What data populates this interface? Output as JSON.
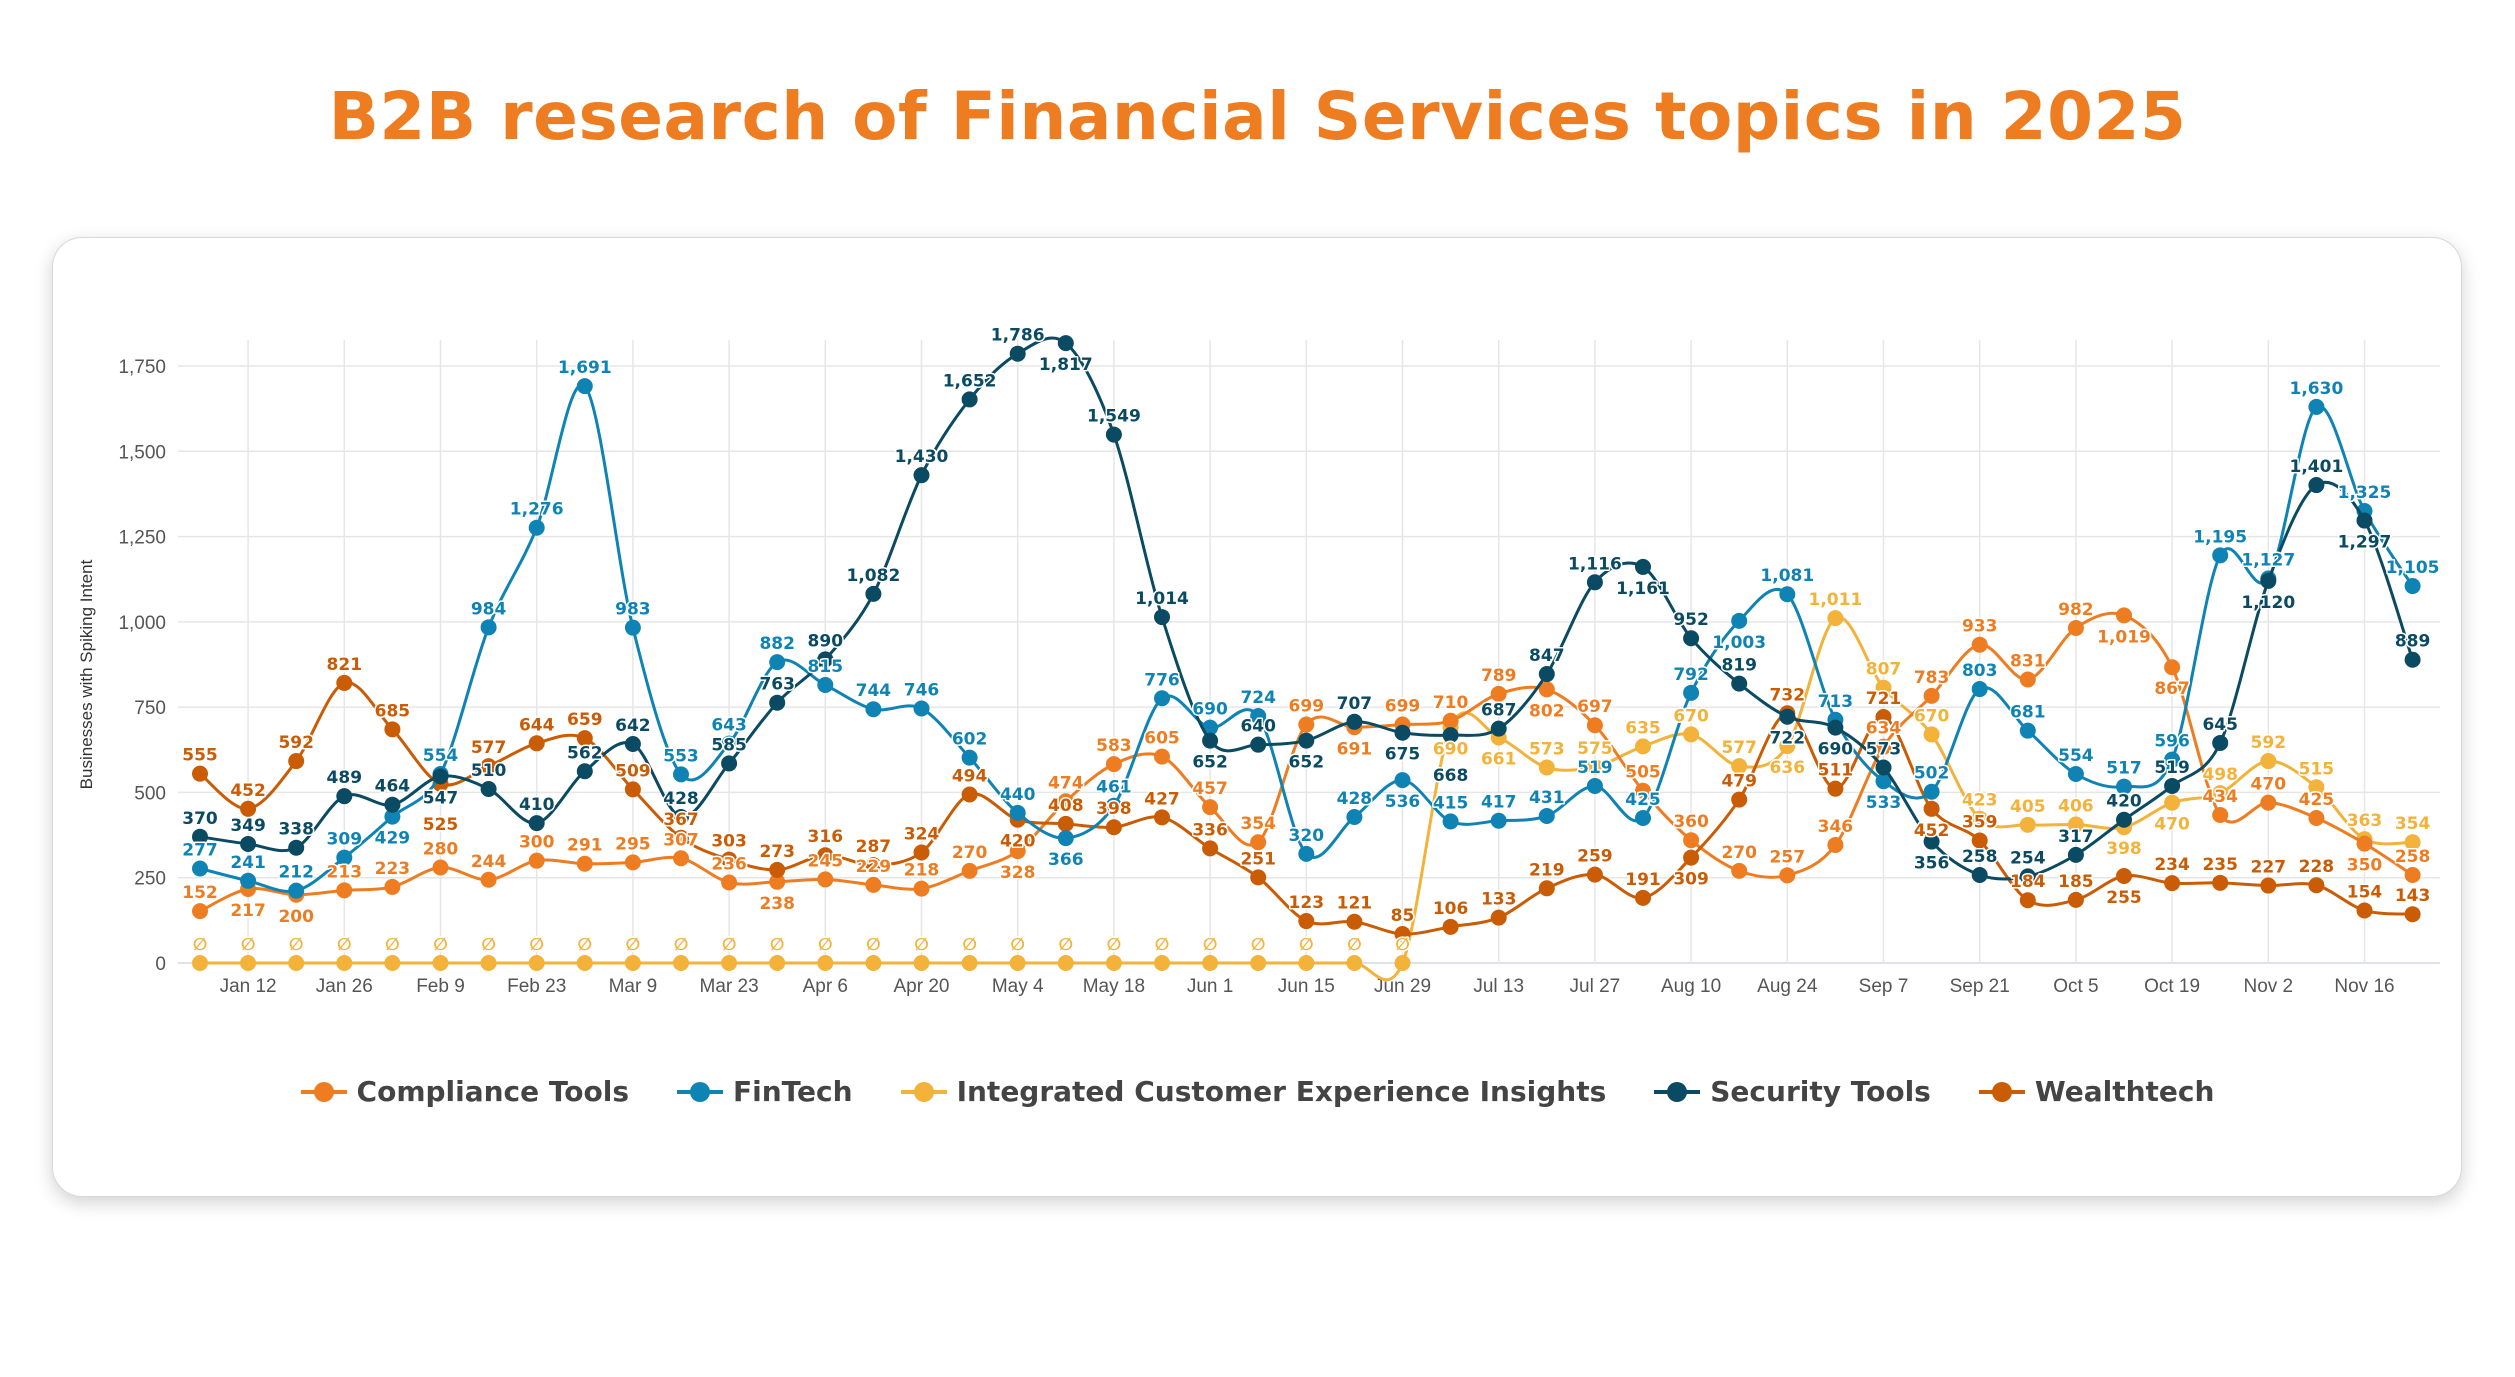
{
  "title": "B2B research of Financial Services topics in 2025",
  "chart_data": {
    "type": "line",
    "title": "B2B research of Financial Services topics in 2025",
    "xlabel": "",
    "ylabel": "Businesses with Spiking Intent",
    "ylim": [
      0,
      1750
    ],
    "yticks": [
      "0",
      "250",
      "500",
      "750",
      "1,000",
      "1,250",
      "1,500",
      "1,750"
    ],
    "ytick_values": [
      0,
      250,
      500,
      750,
      1000,
      1250,
      1500,
      1750
    ],
    "grid": true,
    "legend_position": "bottom",
    "null_marker": "∅",
    "x": [
      "Jan 5",
      "Jan 12",
      "Jan 19",
      "Jan 26",
      "Feb 2",
      "Feb 9",
      "Feb 16",
      "Feb 23",
      "Mar 2",
      "Mar 9",
      "Mar 16",
      "Mar 23",
      "Mar 30",
      "Apr 6",
      "Apr 13",
      "Apr 20",
      "Apr 27",
      "May 4",
      "May 11",
      "May 18",
      "May 25",
      "Jun 1",
      "Jun 8",
      "Jun 15",
      "Jun 22",
      "Jun 29",
      "Jul 6",
      "Jul 13",
      "Jul 20",
      "Jul 27",
      "Aug 3",
      "Aug 10",
      "Aug 17",
      "Aug 24",
      "Aug 31",
      "Sep 7",
      "Sep 14",
      "Sep 21",
      "Sep 28",
      "Oct 5",
      "Oct 12",
      "Oct 19",
      "Oct 26",
      "Nov 2",
      "Nov 9",
      "Nov 16",
      "Nov 23"
    ],
    "xticks": [
      "Jan 12",
      "Jan 26",
      "Feb 9",
      "Feb 23",
      "Mar 9",
      "Mar 23",
      "Apr 6",
      "Apr 20",
      "May 4",
      "May 18",
      "Jun 1",
      "Jun 15",
      "Jun 29",
      "Jul 13",
      "Jul 27",
      "Aug 10",
      "Aug 24",
      "Sep 7",
      "Sep 21",
      "Oct 5",
      "Oct 19",
      "Nov 2",
      "Nov 16"
    ],
    "series": [
      {
        "name": "Compliance Tools",
        "color": "#ee7d22",
        "values": [
          152,
          217,
          200,
          213,
          223,
          280,
          244,
          300,
          291,
          295,
          307,
          236,
          238,
          245,
          229,
          218,
          270,
          328,
          474,
          583,
          605,
          457,
          354,
          699,
          691,
          699,
          710,
          789,
          802,
          697,
          505,
          360,
          270,
          257,
          346,
          634,
          783,
          933,
          831,
          982,
          1019,
          867,
          434,
          470,
          425,
          350,
          258
        ]
      },
      {
        "name": "FinTech",
        "color": "#0f84b4",
        "values": [
          277,
          241,
          212,
          309,
          429,
          554,
          984,
          1276,
          1691,
          983,
          553,
          643,
          882,
          815,
          744,
          746,
          602,
          440,
          366,
          461,
          776,
          690,
          724,
          320,
          428,
          536,
          415,
          417,
          431,
          519,
          425,
          792,
          1003,
          1081,
          713,
          533,
          502,
          803,
          681,
          554,
          517,
          596,
          1195,
          1127,
          1630,
          1325,
          1105
        ]
      },
      {
        "name": "Integrated Customer Experience Insights",
        "color": "#f3b23a",
        "values": [
          null,
          null,
          null,
          null,
          null,
          null,
          null,
          null,
          null,
          null,
          null,
          null,
          null,
          null,
          null,
          null,
          null,
          null,
          null,
          null,
          null,
          null,
          null,
          null,
          null,
          null,
          690,
          661,
          573,
          575,
          635,
          670,
          577,
          636,
          1011,
          807,
          670,
          423,
          405,
          406,
          398,
          470,
          498,
          592,
          515,
          363,
          354
        ]
      },
      {
        "name": "Security Tools",
        "color": "#0b4a63",
        "values": [
          370,
          349,
          338,
          489,
          464,
          547,
          510,
          410,
          562,
          642,
          428,
          585,
          763,
          890,
          1082,
          1430,
          1652,
          1786,
          1817,
          1549,
          1014,
          652,
          640,
          652,
          707,
          675,
          668,
          687,
          847,
          1116,
          1161,
          952,
          819,
          722,
          690,
          573,
          356,
          258,
          254,
          317,
          420,
          519,
          645,
          1120,
          1401,
          1297,
          889
        ]
      },
      {
        "name": "Wealthtech",
        "color": "#c95c04",
        "values": [
          555,
          452,
          592,
          821,
          685,
          525,
          577,
          644,
          659,
          509,
          367,
          303,
          273,
          316,
          287,
          324,
          494,
          420,
          408,
          398,
          427,
          336,
          251,
          123,
          121,
          85,
          106,
          133,
          219,
          259,
          191,
          309,
          479,
          732,
          511,
          721,
          452,
          359,
          184,
          185,
          255,
          234,
          235,
          227,
          228,
          154,
          143
        ]
      }
    ]
  }
}
